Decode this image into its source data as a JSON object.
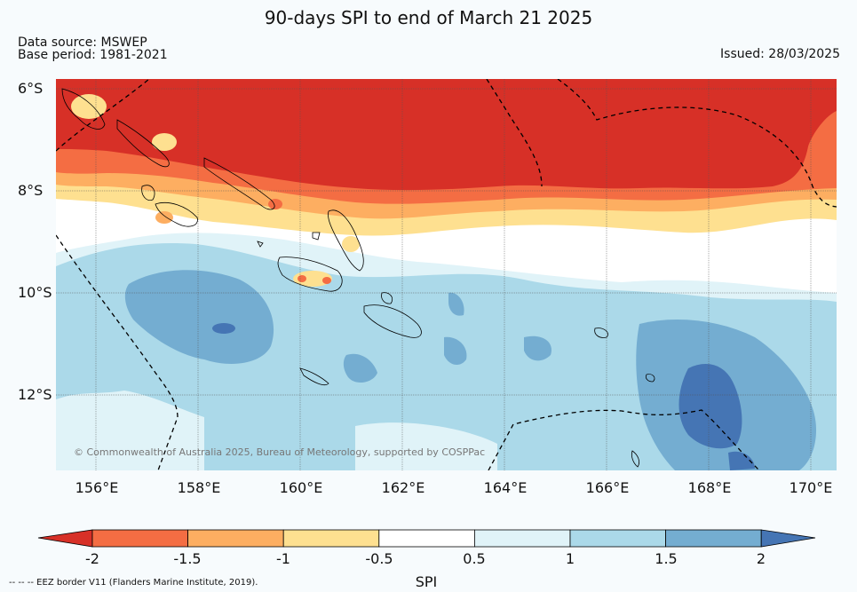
{
  "header": {
    "title": "90-days SPI to end of March 21 2025",
    "data_source": "Data source: MSWEP",
    "base_period": "Base period: 1981-2021",
    "issued": "Issued: 28/03/2025"
  },
  "map": {
    "lat_labels": [
      "6°S",
      "8°S",
      "10°S",
      "12°S"
    ],
    "lon_labels": [
      "156°E",
      "158°E",
      "160°E",
      "162°E",
      "164°E",
      "166°E",
      "168°E",
      "170°E"
    ],
    "copyright": "© Commonwealth of Australia 2025, Bureau of Meteorology, supported by COSPPac",
    "border_color": "#000000",
    "grid": "on"
  },
  "colorbar": {
    "title": "SPI",
    "ticks": [
      "-2",
      "-1.5",
      "-1",
      "-0.5",
      "0.5",
      "1",
      "1.5",
      "2"
    ],
    "colors": [
      "#d73027",
      "#f46d43",
      "#fdae61",
      "#fee090",
      "#ffffff",
      "#e0f3f8",
      "#abd9e9",
      "#74add1",
      "#4575b4"
    ],
    "extend": "both"
  },
  "footnote": "--  --  -- EEZ border V11 (Flanders Marine Institute, 2019)."
}
